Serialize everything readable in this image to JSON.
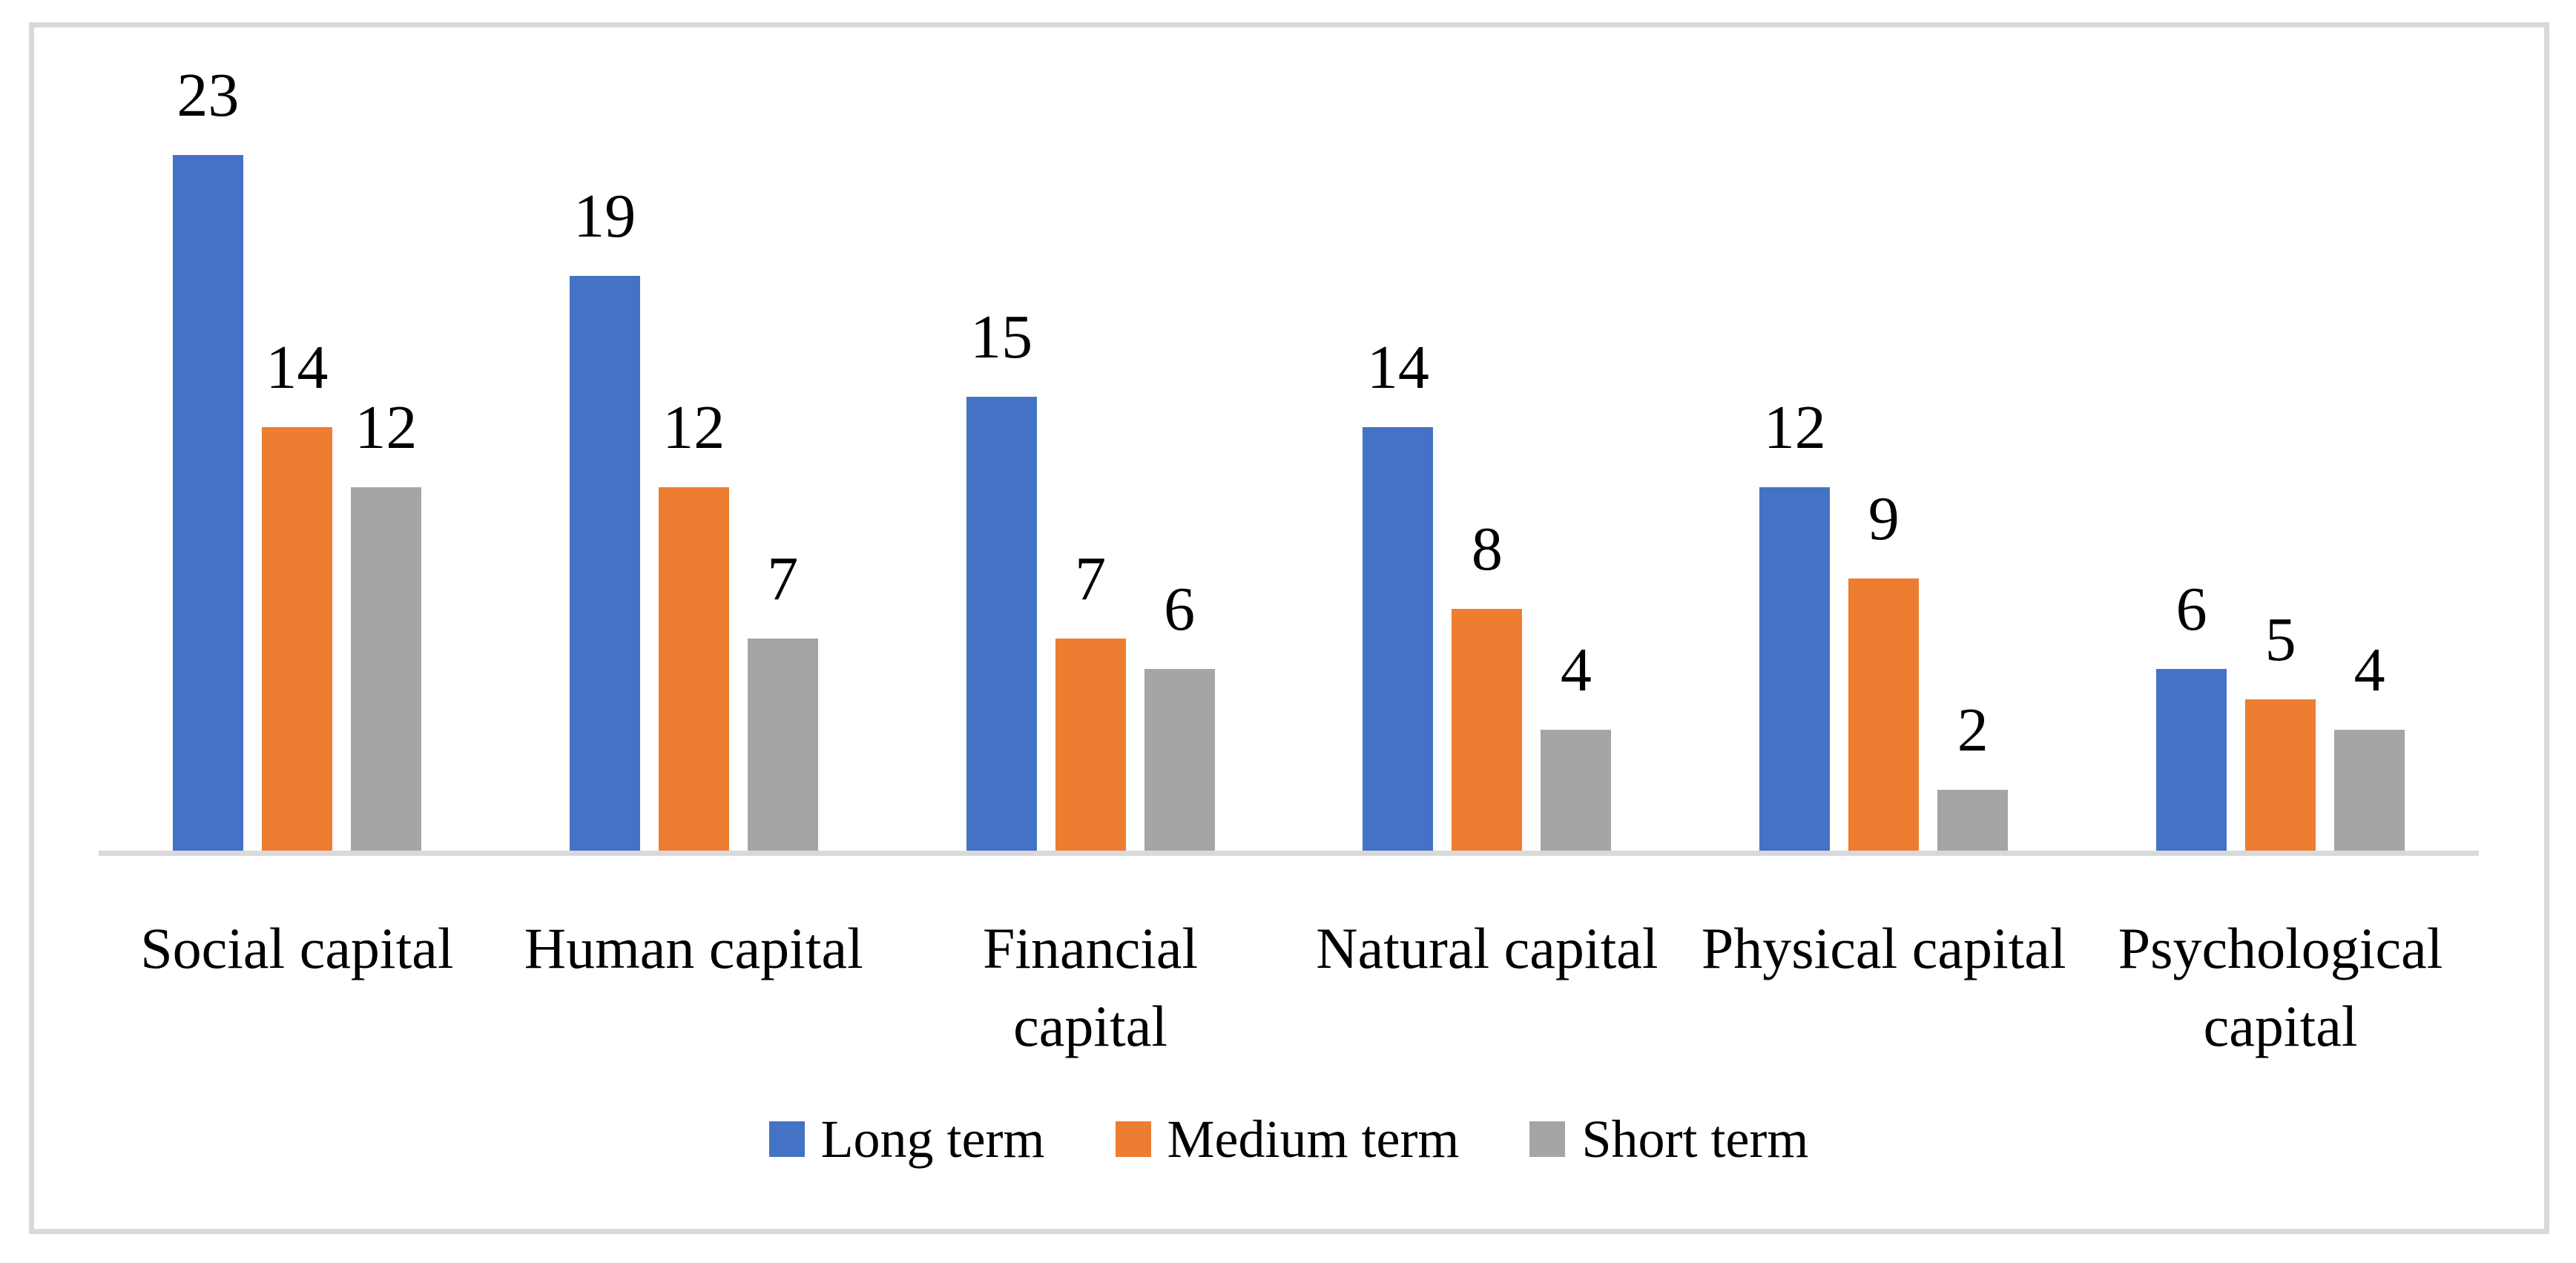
{
  "chart_data": {
    "type": "bar",
    "title": "",
    "xlabel": "",
    "ylabel": "",
    "categories": [
      "Social capital",
      "Human capital",
      "Financial\ncapital",
      "Natural capital",
      "Physical capital",
      "Psychological\ncapital"
    ],
    "series": [
      {
        "name": "Long term",
        "color": "#4472C4",
        "values": [
          23,
          19,
          15,
          14,
          12,
          6
        ]
      },
      {
        "name": "Medium term",
        "color": "#ED7D31",
        "values": [
          14,
          12,
          7,
          8,
          9,
          5
        ]
      },
      {
        "name": "Short term",
        "color": "#A5A5A5",
        "values": [
          12,
          7,
          6,
          4,
          2,
          4
        ]
      }
    ],
    "data_labels_shown": true,
    "ylim": [
      0,
      25
    ],
    "grid": false,
    "y_axis_shown": false,
    "legend_position": "bottom",
    "axis_line_color": "#D9D9D9",
    "frame_border_color": "#D9D9D9",
    "background_color": "#FFFFFF",
    "text_color": "#000000"
  }
}
